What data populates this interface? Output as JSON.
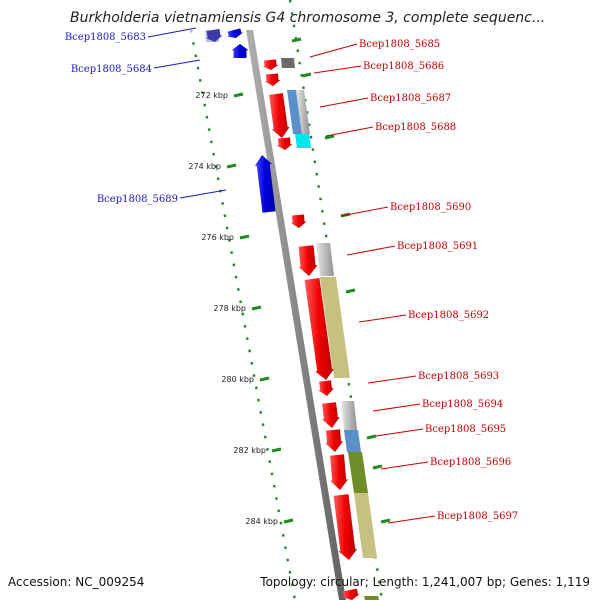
{
  "title": "Burkholderia vietnamiensis G4 chromosome 3, complete sequenc...",
  "footer": {
    "accession_label": "Accession:",
    "accession": "NC_009254",
    "topology_label": "Topology:",
    "topology": "circular;",
    "length_label": "Length:",
    "length": "1,241,007 bp;",
    "genes_label": "Genes:",
    "genes": "1,119"
  },
  "colors": {
    "backbone": "#8c8c8c",
    "tick": "#1e8c1e",
    "forward_gene": "#ee0000",
    "reverse_gene": "#0000dd",
    "label_forward": "#cc0000",
    "label_reverse": "#1a1acc",
    "feature_gray": "#b8b8b8",
    "feature_blue": "#5a8fc8",
    "feature_cyan": "#00e6ee",
    "feature_khaki": "#c8c080",
    "feature_olive": "#6e8c28"
  },
  "ticks": [
    "272 kbp",
    "274 kbp",
    "276 kbp",
    "278 kbp",
    "280 kbp",
    "282 kbp",
    "284 kbp"
  ],
  "genes": {
    "reverse": [
      "Bcep1808_5683",
      "Bcep1808_5684",
      "Bcep1808_5689"
    ],
    "forward": [
      "Bcep1808_5685",
      "Bcep1808_5686",
      "Bcep1808_5687",
      "Bcep1808_5688",
      "Bcep1808_5690",
      "Bcep1808_5691",
      "Bcep1808_5692",
      "Bcep1808_5693",
      "Bcep1808_5694",
      "Bcep1808_5695",
      "Bcep1808_5696",
      "Bcep1808_5697"
    ]
  }
}
